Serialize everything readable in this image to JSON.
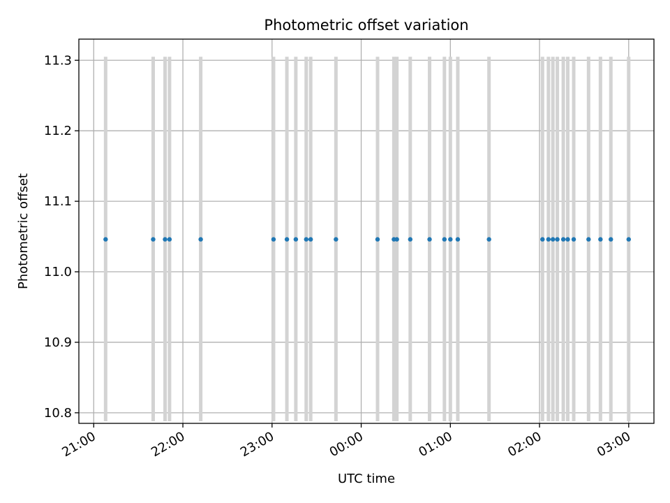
{
  "chart_data": {
    "type": "scatter",
    "title": "Photometric offset variation",
    "xlabel": "UTC time",
    "ylabel": "Photometric offset",
    "x_axis_type": "time",
    "xlim": [
      "20:50",
      "03:17"
    ],
    "ylim": [
      10.785,
      11.33
    ],
    "grid": true,
    "x_ticks": [
      "21:00",
      "22:00",
      "23:00",
      "00:00",
      "01:00",
      "02:00",
      "03:00"
    ],
    "y_ticks": [
      "10.8",
      "10.9",
      "11.0",
      "11.1",
      "11.2",
      "11.3"
    ],
    "y_tick_values": [
      10.8,
      10.9,
      11.0,
      11.1,
      11.2,
      11.3
    ],
    "errorbar_range": [
      10.788,
      11.305
    ],
    "marker_color": "#1f77b4",
    "errorbar_color": "#d3d3d3",
    "series": [
      {
        "x": [
          "21:08",
          "21:40",
          "21:48",
          "21:51",
          "22:12",
          "23:01",
          "23:10",
          "23:16",
          "23:23",
          "23:26",
          "23:43",
          "00:11",
          "00:22",
          "00:24",
          "00:33",
          "00:46",
          "00:56",
          "01:00",
          "01:05",
          "01:26",
          "02:02",
          "02:06",
          "02:09",
          "02:12",
          "02:16",
          "02:19",
          "02:23",
          "02:33",
          "02:41",
          "02:48",
          "03:00"
        ],
        "y": [
          11.046,
          11.046,
          11.046,
          11.046,
          11.046,
          11.046,
          11.046,
          11.046,
          11.046,
          11.046,
          11.046,
          11.046,
          11.046,
          11.046,
          11.046,
          11.046,
          11.046,
          11.046,
          11.046,
          11.046,
          11.046,
          11.046,
          11.046,
          11.046,
          11.046,
          11.046,
          11.046,
          11.046,
          11.046,
          11.046,
          11.046
        ]
      }
    ]
  }
}
